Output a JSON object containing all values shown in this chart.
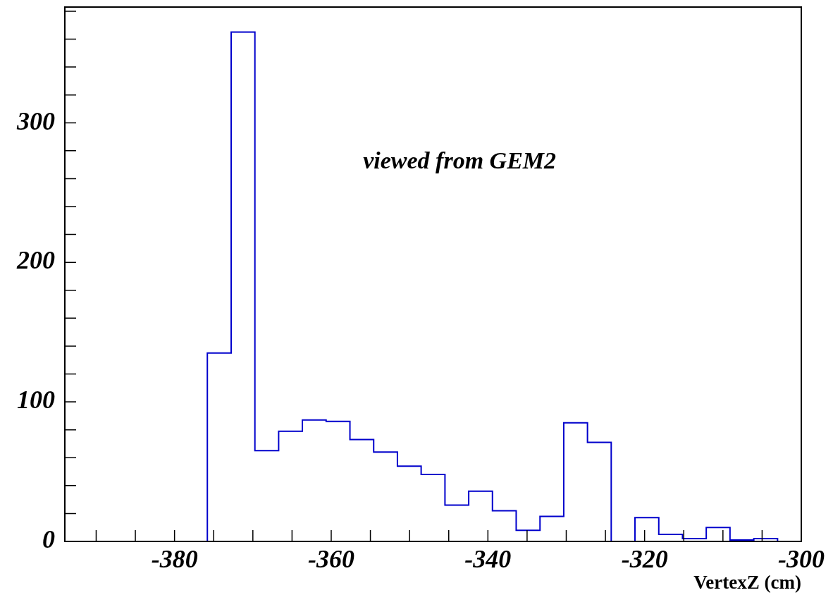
{
  "chart_data": {
    "type": "histogram",
    "xlabel": "VertexZ (cm)",
    "color": "#0000cc",
    "annotations": [
      "viewed from GEM2"
    ],
    "bins": [
      -394,
      -390.97,
      -387.94,
      -384.9,
      -381.87,
      -378.84,
      -375.81,
      -372.77,
      -369.74,
      -366.71,
      -363.68,
      -360.65,
      -357.61,
      -354.58,
      -351.55,
      -348.52,
      -345.48,
      -342.45,
      -339.42,
      -336.39,
      -333.35,
      -330.32,
      -327.29,
      -324.26,
      -321.23,
      -318.19,
      -315.16,
      -312.13,
      -309.1,
      -306.06,
      -303.03,
      -300
    ],
    "values": [
      0,
      0,
      0,
      0,
      0,
      0,
      135,
      365,
      65,
      79,
      87,
      86,
      73,
      64,
      54,
      48,
      26,
      36,
      22,
      8,
      18,
      85,
      71,
      0,
      17,
      5,
      2,
      10,
      1,
      2,
      0
    ],
    "xlim": [
      -394,
      -300
    ],
    "ylim": [
      0,
      383
    ],
    "xticks": [
      {
        "value": -390,
        "label": null
      },
      {
        "value": -385,
        "label": null
      },
      -380,
      {
        "value": -375,
        "label": null
      },
      {
        "value": -370,
        "label": null
      },
      {
        "value": -365,
        "label": null
      },
      -360,
      {
        "value": -355,
        "label": null
      },
      {
        "value": -350,
        "label": null
      },
      {
        "value": -345,
        "label": null
      },
      -340,
      {
        "value": -335,
        "label": null
      },
      {
        "value": -330,
        "label": null
      },
      {
        "value": -325,
        "label": null
      },
      -320,
      {
        "value": -315,
        "label": null
      },
      {
        "value": -310,
        "label": null
      },
      {
        "value": -305,
        "label": null
      },
      -300
    ],
    "yticks": [
      0,
      {
        "value": 20,
        "label": null
      },
      {
        "value": 40,
        "label": null
      },
      {
        "value": 60,
        "label": null
      },
      {
        "value": 80,
        "label": null
      },
      100,
      {
        "value": 120,
        "label": null
      },
      {
        "value": 140,
        "label": null
      },
      {
        "value": 160,
        "label": null
      },
      {
        "value": 180,
        "label": null
      },
      200,
      {
        "value": 220,
        "label": null
      },
      {
        "value": 240,
        "label": null
      },
      {
        "value": 260,
        "label": null
      },
      {
        "value": 280,
        "label": null
      },
      300,
      {
        "value": 320,
        "label": null
      },
      {
        "value": 340,
        "label": null
      },
      {
        "value": 360,
        "label": null
      },
      {
        "value": 380,
        "label": null
      }
    ]
  }
}
